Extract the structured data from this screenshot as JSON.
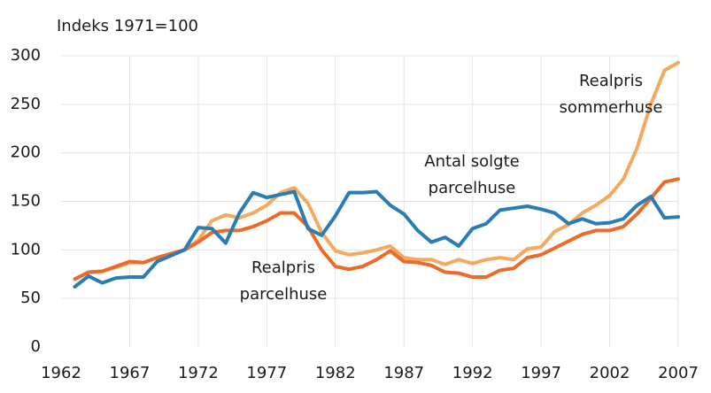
{
  "chart_data": {
    "type": "line",
    "y_label": "Indeks 1971=100",
    "x": [
      1963,
      1964,
      1965,
      1966,
      1967,
      1968,
      1969,
      1970,
      1971,
      1972,
      1973,
      1974,
      1975,
      1976,
      1977,
      1978,
      1979,
      1980,
      1981,
      1982,
      1983,
      1984,
      1985,
      1986,
      1987,
      1988,
      1989,
      1990,
      1991,
      1992,
      1993,
      1994,
      1995,
      1996,
      1997,
      1998,
      1999,
      2000,
      2001,
      2002,
      2003,
      2004,
      2005,
      2006,
      2007
    ],
    "series": [
      {
        "color": "#f5a95c",
        "values": [
          70,
          77,
          78,
          82,
          87,
          87,
          92,
          96,
          100,
          110,
          130,
          136,
          133,
          138,
          146,
          159,
          164,
          148,
          118,
          99,
          95,
          97,
          100,
          104,
          92,
          90,
          90,
          85,
          90,
          86,
          90,
          92,
          90,
          101,
          103,
          119,
          126,
          138,
          146,
          156,
          173,
          205,
          250,
          285,
          293
        ]
      },
      {
        "color": "#ec6b2b",
        "values": [
          70,
          77,
          78,
          83,
          88,
          87,
          92,
          96,
          100,
          108,
          118,
          120,
          120,
          124,
          130,
          138,
          138,
          124,
          100,
          83,
          80,
          83,
          90,
          99,
          88,
          87,
          84,
          77,
          76,
          72,
          72,
          79,
          81,
          92,
          95,
          102,
          109,
          116,
          120,
          120,
          124,
          137,
          153,
          170,
          173
        ]
      },
      {
        "color": "#2a7db3",
        "values": [
          62,
          73,
          66,
          71,
          72,
          72,
          88,
          94,
          100,
          123,
          122,
          107,
          138,
          159,
          154,
          157,
          160,
          122,
          115,
          135,
          159,
          159,
          160,
          146,
          137,
          120,
          108,
          113,
          104,
          122,
          127,
          141,
          143,
          145,
          142,
          138,
          127,
          132,
          127,
          128,
          132,
          146,
          155,
          133,
          134
        ]
      }
    ],
    "annotations": [
      [
        "Realpris",
        "sommerhuse"
      ],
      [
        "Antal solgte",
        "parcelhuse"
      ],
      [
        "Realpris",
        "parcelhuse"
      ]
    ],
    "xlim": [
      1962,
      2007
    ],
    "xticks": [
      1962,
      1967,
      1972,
      1977,
      1982,
      1987,
      1992,
      1997,
      2002,
      2007
    ],
    "ylim": [
      0,
      300
    ],
    "yticks": [
      0,
      50,
      100,
      150,
      200,
      250,
      300
    ],
    "grid": true
  }
}
